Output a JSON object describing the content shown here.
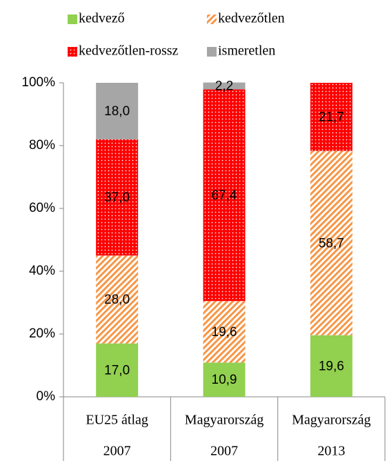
{
  "chart_data": {
    "type": "stacked_bar_100",
    "categories": [
      [
        "EU25 átlag",
        "2007"
      ],
      [
        "Magyarország",
        "2007"
      ],
      [
        "Magyarország",
        "2013"
      ]
    ],
    "series": [
      {
        "name": "kedvező",
        "color": "#92d050",
        "pattern": "solid",
        "values": [
          17.0,
          10.9,
          19.6
        ],
        "value_labels": [
          "17,0",
          "10,9",
          "19,6"
        ]
      },
      {
        "name": "kedvezőtlen",
        "color": "#f79646",
        "pattern": "hatch",
        "values": [
          28.0,
          19.6,
          58.7
        ],
        "value_labels": [
          "28,0",
          "19,6",
          "58,7"
        ]
      },
      {
        "name": "kedvezőtlen-rossz",
        "color": "#ff0000",
        "pattern": "dots",
        "values": [
          37.0,
          67.4,
          21.7
        ],
        "value_labels": [
          "37,0",
          "67,4",
          "21,7"
        ]
      },
      {
        "name": "ismeretlen",
        "color": "#a6a6a6",
        "pattern": "solid",
        "values": [
          18.0,
          2.2,
          0
        ],
        "value_labels": [
          "18,0",
          "2,2",
          null
        ]
      }
    ],
    "ylim": [
      0,
      100
    ],
    "yticks": [
      {
        "value": 0,
        "label": "0%"
      },
      {
        "value": 20,
        "label": "20%"
      },
      {
        "value": 40,
        "label": "40%"
      },
      {
        "value": 60,
        "label": "60%"
      },
      {
        "value": 80,
        "label": "80%"
      },
      {
        "value": 100,
        "label": "100%"
      }
    ],
    "grid": false
  }
}
